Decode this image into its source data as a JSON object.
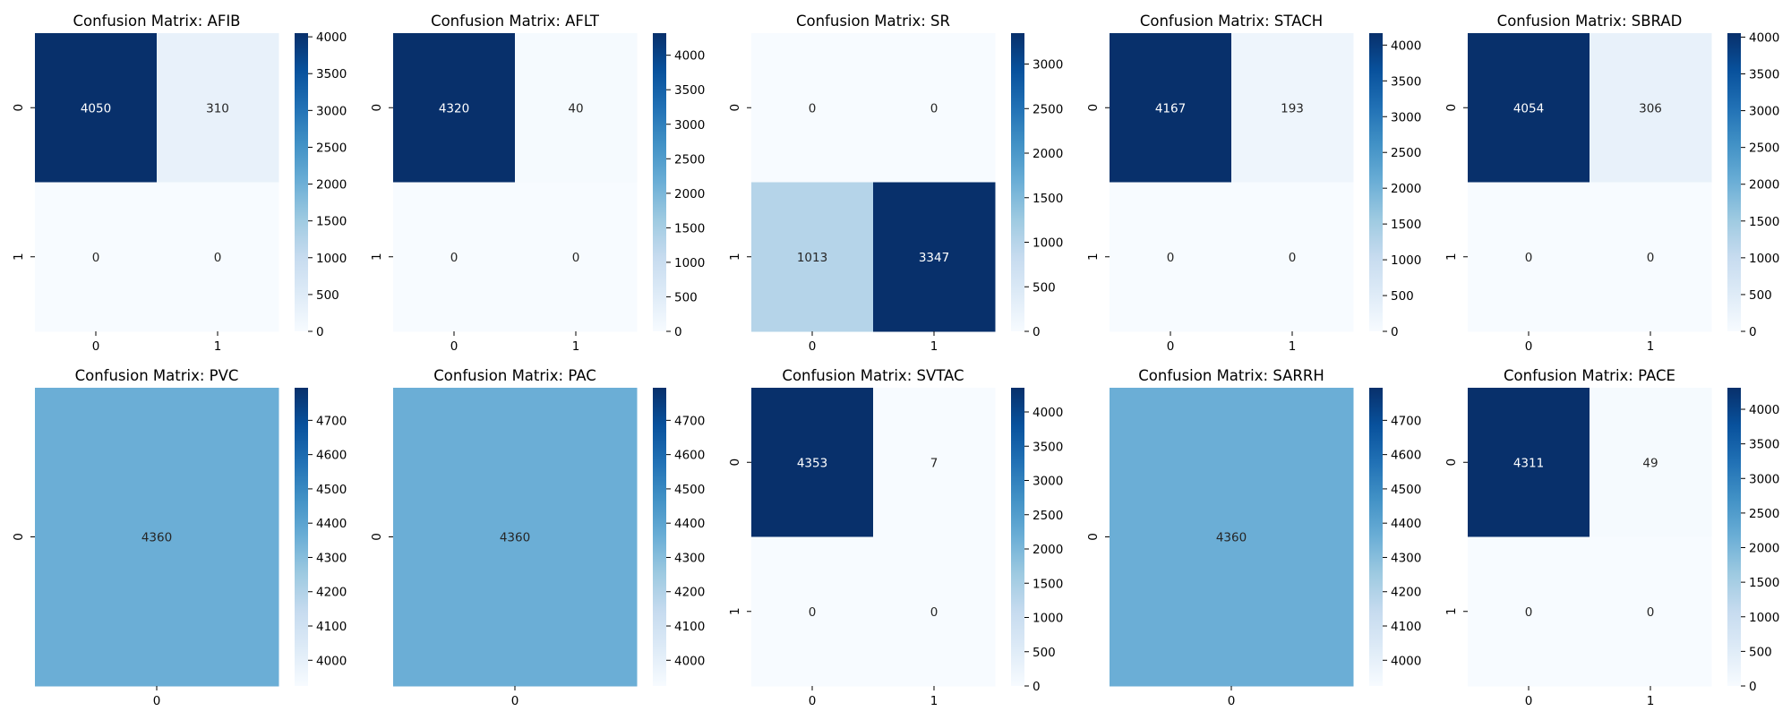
{
  "colormap": {
    "name": "Blues",
    "stops": [
      "#f7fbff",
      "#deebf7",
      "#c6dbef",
      "#9ecae1",
      "#6baed6",
      "#4292c6",
      "#2171b5",
      "#08519c",
      "#08306b"
    ]
  },
  "chart_data": [
    {
      "type": "heatmap",
      "title": "Confusion Matrix: AFIB",
      "x_ticks": [
        "0",
        "1"
      ],
      "y_ticks": [
        "0",
        "1"
      ],
      "values": [
        [
          4050,
          310
        ],
        [
          0,
          0
        ]
      ],
      "cell_labels": [
        [
          "4050",
          "310"
        ],
        [
          "0",
          "0"
        ]
      ],
      "colorbar": {
        "vmin": 0,
        "vmax": 4050,
        "ticks": [
          "0",
          "500",
          "1000",
          "1500",
          "2000",
          "2500",
          "3000",
          "3500",
          "4000"
        ]
      }
    },
    {
      "type": "heatmap",
      "title": "Confusion Matrix: AFLT",
      "x_ticks": [
        "0",
        "1"
      ],
      "y_ticks": [
        "0",
        "1"
      ],
      "values": [
        [
          4320,
          40
        ],
        [
          0,
          0
        ]
      ],
      "cell_labels": [
        [
          "4320",
          "40"
        ],
        [
          "0",
          "0"
        ]
      ],
      "colorbar": {
        "vmin": 0,
        "vmax": 4320,
        "ticks": [
          "0",
          "500",
          "1000",
          "1500",
          "2000",
          "2500",
          "3000",
          "3500",
          "4000"
        ]
      }
    },
    {
      "type": "heatmap",
      "title": "Confusion Matrix: SR",
      "x_ticks": [
        "0",
        "1"
      ],
      "y_ticks": [
        "0",
        "1"
      ],
      "values": [
        [
          0,
          0
        ],
        [
          1013,
          3347
        ]
      ],
      "cell_labels": [
        [
          "0",
          "0"
        ],
        [
          "1013",
          "3347"
        ]
      ],
      "colorbar": {
        "vmin": 0,
        "vmax": 3347,
        "ticks": [
          "0",
          "500",
          "1000",
          "1500",
          "2000",
          "2500",
          "3000"
        ]
      }
    },
    {
      "type": "heatmap",
      "title": "Confusion Matrix: STACH",
      "x_ticks": [
        "0",
        "1"
      ],
      "y_ticks": [
        "0",
        "1"
      ],
      "values": [
        [
          4167,
          193
        ],
        [
          0,
          0
        ]
      ],
      "cell_labels": [
        [
          "4167",
          "193"
        ],
        [
          "0",
          "0"
        ]
      ],
      "colorbar": {
        "vmin": 0,
        "vmax": 4167,
        "ticks": [
          "0",
          "500",
          "1000",
          "1500",
          "2000",
          "2500",
          "3000",
          "3500",
          "4000"
        ]
      }
    },
    {
      "type": "heatmap",
      "title": "Confusion Matrix: SBRAD",
      "x_ticks": [
        "0",
        "1"
      ],
      "y_ticks": [
        "0",
        "1"
      ],
      "values": [
        [
          4054,
          306
        ],
        [
          0,
          0
        ]
      ],
      "cell_labels": [
        [
          "4054",
          "306"
        ],
        [
          "0",
          "0"
        ]
      ],
      "colorbar": {
        "vmin": 0,
        "vmax": 4054,
        "ticks": [
          "0",
          "500",
          "1000",
          "1500",
          "2000",
          "2500",
          "3000",
          "3500",
          "4000"
        ]
      }
    },
    {
      "type": "heatmap",
      "title": "Confusion Matrix: PVC",
      "x_ticks": [
        "0"
      ],
      "y_ticks": [
        "0"
      ],
      "values": [
        [
          4360
        ]
      ],
      "cell_labels": [
        [
          "4360"
        ]
      ],
      "colorbar": {
        "vmin": 3925,
        "vmax": 4795,
        "ticks": [
          "4000",
          "4100",
          "4200",
          "4300",
          "4400",
          "4500",
          "4600",
          "4700"
        ]
      }
    },
    {
      "type": "heatmap",
      "title": "Confusion Matrix: PAC",
      "x_ticks": [
        "0"
      ],
      "y_ticks": [
        "0"
      ],
      "values": [
        [
          4360
        ]
      ],
      "cell_labels": [
        [
          "4360"
        ]
      ],
      "colorbar": {
        "vmin": 3925,
        "vmax": 4795,
        "ticks": [
          "4000",
          "4100",
          "4200",
          "4300",
          "4400",
          "4500",
          "4600",
          "4700"
        ]
      }
    },
    {
      "type": "heatmap",
      "title": "Confusion Matrix: SVTAC",
      "x_ticks": [
        "0",
        "1"
      ],
      "y_ticks": [
        "0",
        "1"
      ],
      "values": [
        [
          4353,
          7
        ],
        [
          0,
          0
        ]
      ],
      "cell_labels": [
        [
          "4353",
          "7"
        ],
        [
          "0",
          "0"
        ]
      ],
      "colorbar": {
        "vmin": 0,
        "vmax": 4353,
        "ticks": [
          "0",
          "500",
          "1000",
          "1500",
          "2000",
          "2500",
          "3000",
          "3500",
          "4000"
        ]
      }
    },
    {
      "type": "heatmap",
      "title": "Confusion Matrix: SARRH",
      "x_ticks": [
        "0"
      ],
      "y_ticks": [
        "0"
      ],
      "values": [
        [
          4360
        ]
      ],
      "cell_labels": [
        [
          "4360"
        ]
      ],
      "colorbar": {
        "vmin": 3925,
        "vmax": 4795,
        "ticks": [
          "4000",
          "4100",
          "4200",
          "4300",
          "4400",
          "4500",
          "4600",
          "4700"
        ]
      }
    },
    {
      "type": "heatmap",
      "title": "Confusion Matrix: PACE",
      "x_ticks": [
        "0",
        "1"
      ],
      "y_ticks": [
        "0",
        "1"
      ],
      "values": [
        [
          4311,
          49
        ],
        [
          0,
          0
        ]
      ],
      "cell_labels": [
        [
          "4311",
          "49"
        ],
        [
          "0",
          "0"
        ]
      ],
      "colorbar": {
        "vmin": 0,
        "vmax": 4311,
        "ticks": [
          "0",
          "500",
          "1000",
          "1500",
          "2000",
          "2500",
          "3000",
          "3500",
          "4000"
        ]
      }
    }
  ]
}
